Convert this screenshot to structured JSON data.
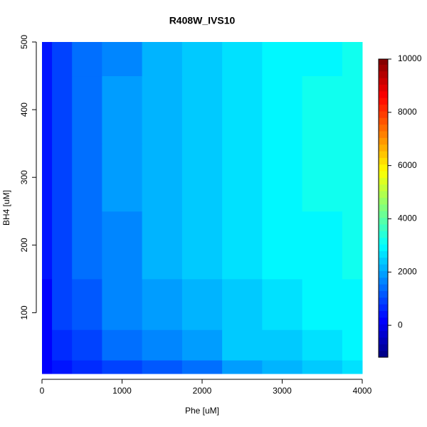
{
  "chart_data": {
    "type": "contour",
    "title": "R408W_IVS10",
    "x_label": "Phe [uM]",
    "y_label": "BH4 [uM]",
    "x": [
      0,
      250,
      500,
      1000,
      1500,
      2000,
      2500,
      3000,
      3500,
      4000
    ],
    "y": [
      10,
      50,
      100,
      200,
      300,
      400,
      500
    ],
    "z": [
      [
        100,
        300,
        600,
        900,
        1200,
        1500,
        1800,
        2100,
        2400,
        2600
      ],
      [
        200,
        600,
        1000,
        1400,
        1700,
        2000,
        2300,
        2500,
        2700,
        2800
      ],
      [
        250,
        800,
        1200,
        1600,
        1900,
        2200,
        2500,
        2700,
        2850,
        2950
      ],
      [
        300,
        900,
        1300,
        1750,
        2100,
        2400,
        2650,
        2850,
        3000,
        3100
      ],
      [
        300,
        900,
        1350,
        1800,
        2150,
        2450,
        2700,
        2900,
        3050,
        3200
      ],
      [
        300,
        900,
        1350,
        1800,
        2150,
        2450,
        2700,
        2900,
        3050,
        3150
      ],
      [
        300,
        850,
        1300,
        1750,
        2100,
        2400,
        2650,
        2850,
        3000,
        3050
      ]
    ],
    "xlim": [
      0,
      4000
    ],
    "xticks": [
      0,
      1000,
      2000,
      3000,
      4000
    ],
    "ylim": [
      10,
      500
    ],
    "yticks": [
      100,
      200,
      300,
      400,
      500
    ],
    "zlim": [
      -1200,
      10000
    ],
    "zticks": [
      0,
      2000,
      4000,
      6000,
      8000,
      10000
    ],
    "level_step": 250,
    "colors": [
      "#00007f",
      "#0000ff",
      "#007fff",
      "#00ffff",
      "#7fff7f",
      "#ffff00",
      "#ff7f00",
      "#ff0000",
      "#7f0000"
    ]
  }
}
